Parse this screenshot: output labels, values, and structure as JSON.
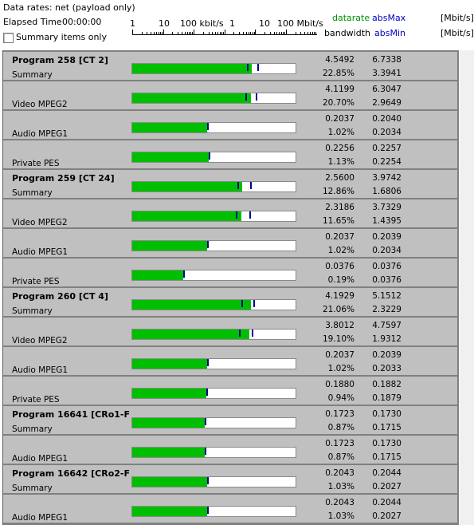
{
  "header": {
    "data_rates": "Data rates: net (payload only)",
    "elapsed_label": "Elapsed Time",
    "elapsed_value": "00:00:00",
    "summary_only": "Summary items only",
    "scale_labels": [
      "1",
      "10",
      "100 kbit/s",
      "1",
      "10",
      "100 Mbit/s"
    ],
    "col_datarate": "datarate",
    "col_absmax": "absMax",
    "col_bandwidth": "bandwidth",
    "col_absmin": "absMin",
    "unit1": "[Mbit/s]",
    "unit2": "[Mbit/s]"
  },
  "colors": {
    "bar_fill": "#00bf00",
    "marker": "#000090",
    "datarate": "#009000",
    "absmax": "#0000c0"
  },
  "rows": [
    {
      "program": "Program 258 [CT 2]",
      "label": "Summary",
      "rate": "4.5492",
      "max": "6.7338",
      "pct": "22.85%",
      "min": "3.3941",
      "fill": 0.73,
      "m1": 0.7,
      "m2": 0.765
    },
    {
      "program": "",
      "label": "Video MPEG2",
      "rate": "4.1199",
      "max": "6.3047",
      "pct": "20.70%",
      "min": "2.9649",
      "fill": 0.725,
      "m1": 0.695,
      "m2": 0.755
    },
    {
      "program": "",
      "label": "Audio MPEG1",
      "rate": "0.2037",
      "max": "0.2040",
      "pct": "1.02%",
      "min": "0.2034",
      "fill": 0.46,
      "m1": 0.46,
      "m2": 0.46
    },
    {
      "program": "",
      "label": "Private PES",
      "rate": "0.2256",
      "max": "0.2257",
      "pct": "1.13%",
      "min": "0.2254",
      "fill": 0.47,
      "m1": 0.47,
      "m2": 0.47
    },
    {
      "program": "Program 259 [CT 24]",
      "label": "Summary",
      "rate": "2.5600",
      "max": "3.9742",
      "pct": "12.86%",
      "min": "1.6806",
      "fill": 0.675,
      "m1": 0.645,
      "m2": 0.72
    },
    {
      "program": "",
      "label": "Video MPEG2",
      "rate": "2.3186",
      "max": "3.7329",
      "pct": "11.65%",
      "min": "1.4395",
      "fill": 0.67,
      "m1": 0.635,
      "m2": 0.715
    },
    {
      "program": "",
      "label": "Audio MPEG1",
      "rate": "0.2037",
      "max": "0.2039",
      "pct": "1.02%",
      "min": "0.2034",
      "fill": 0.46,
      "m1": 0.46,
      "m2": 0.46
    },
    {
      "program": "",
      "label": "Private PES",
      "rate": "0.0376",
      "max": "0.0376",
      "pct": "0.19%",
      "min": "0.0376",
      "fill": 0.31,
      "m1": 0.31,
      "m2": 0.31
    },
    {
      "program": "Program 260 [CT 4]",
      "label": "Summary",
      "rate": "4.1929",
      "max": "5.1512",
      "pct": "21.06%",
      "min": "2.3229",
      "fill": 0.725,
      "m1": 0.67,
      "m2": 0.74
    },
    {
      "program": "",
      "label": "Video MPEG2",
      "rate": "3.8012",
      "max": "4.7597",
      "pct": "19.10%",
      "min": "1.9312",
      "fill": 0.715,
      "m1": 0.655,
      "m2": 0.73
    },
    {
      "program": "",
      "label": "Audio MPEG1",
      "rate": "0.2037",
      "max": "0.2039",
      "pct": "1.02%",
      "min": "0.2033",
      "fill": 0.46,
      "m1": 0.46,
      "m2": 0.46
    },
    {
      "program": "",
      "label": "Private PES",
      "rate": "0.1880",
      "max": "0.1882",
      "pct": "0.94%",
      "min": "0.1879",
      "fill": 0.455,
      "m1": 0.455,
      "m2": 0.455
    },
    {
      "program": "Program 16641 [CRo1-F",
      "label": "Summary",
      "rate": "0.1723",
      "max": "0.1730",
      "pct": "0.87%",
      "min": "0.1715",
      "fill": 0.445,
      "m1": 0.445,
      "m2": 0.445
    },
    {
      "program": "",
      "label": "Audio MPEG1",
      "rate": "0.1723",
      "max": "0.1730",
      "pct": "0.87%",
      "min": "0.1715",
      "fill": 0.445,
      "m1": 0.445,
      "m2": 0.445
    },
    {
      "program": "Program 16642 [CRo2-F",
      "label": "Summary",
      "rate": "0.2043",
      "max": "0.2044",
      "pct": "1.03%",
      "min": "0.2027",
      "fill": 0.46,
      "m1": 0.46,
      "m2": 0.46
    },
    {
      "program": "",
      "label": "Audio MPEG1",
      "rate": "0.2043",
      "max": "0.2044",
      "pct": "1.03%",
      "min": "0.2027",
      "fill": 0.46,
      "m1": 0.46,
      "m2": 0.46
    }
  ]
}
